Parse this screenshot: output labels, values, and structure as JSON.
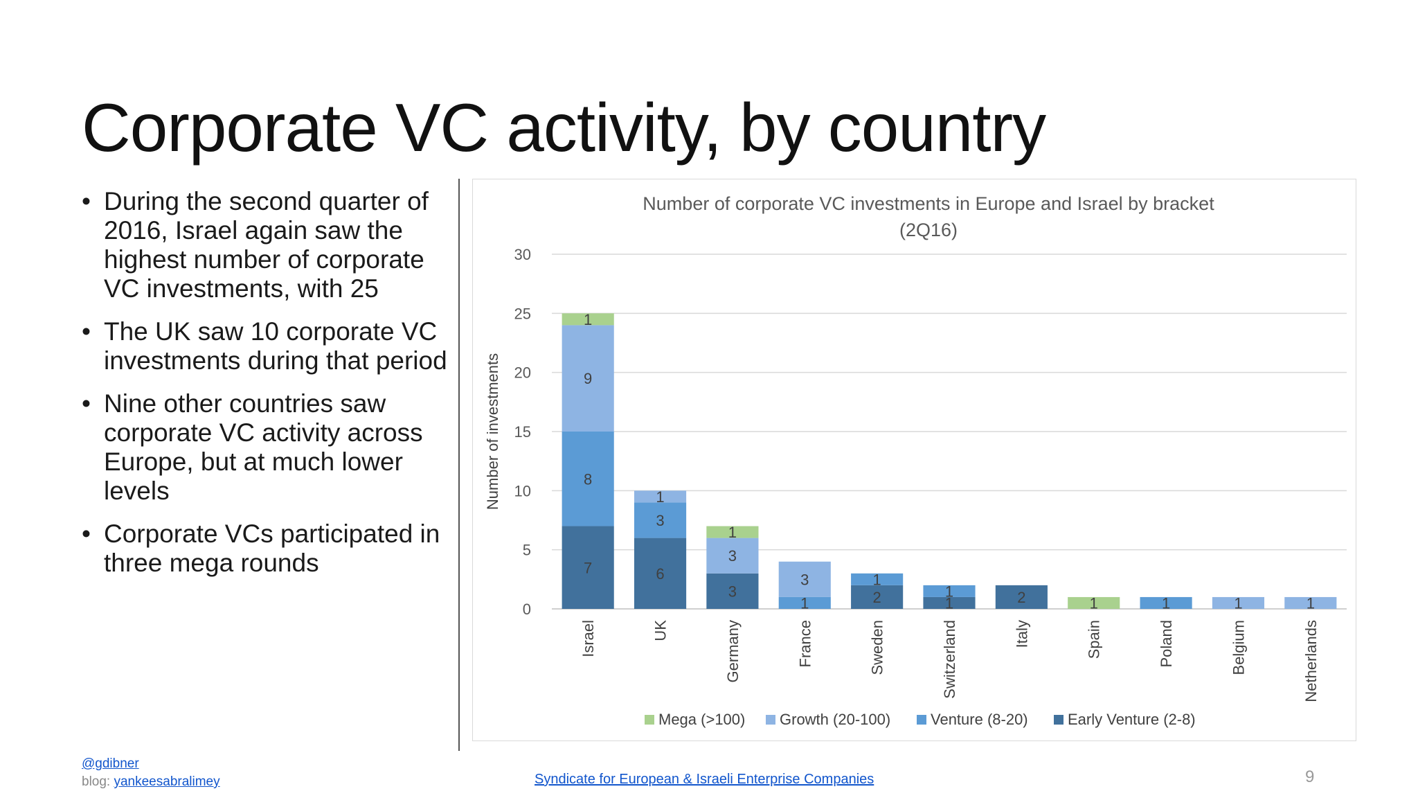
{
  "slide": {
    "title": "Corporate VC activity, by country",
    "bullets": [
      "During the second quarter of 2016, Israel again saw the highest number of corporate VC investments, with 25",
      "The UK saw 10 corporate VC investments during that period",
      "Nine other countries saw corporate VC activity across Europe, but at much lower levels",
      "Corporate VCs participated in three mega rounds"
    ],
    "bullet_glyph": "•",
    "footer": {
      "twitter": "@gdibner",
      "blog_label": "blog: ",
      "blog_link": "yankeesabralimey",
      "source_link": "Syndicate for European & Israeli Enterprise Companies",
      "page_number": "9"
    }
  },
  "chart_data": {
    "type": "bar",
    "stacked": true,
    "title": "Number of corporate VC investments in Europe and Israel by bracket",
    "subtitle": "(2Q16)",
    "xlabel": "",
    "ylabel": "Number of investments",
    "ylim": [
      0,
      30
    ],
    "yticks": [
      0,
      5,
      10,
      15,
      20,
      25,
      30
    ],
    "grid": true,
    "legend_position": "bottom",
    "categories": [
      "Israel",
      "UK",
      "Germany",
      "France",
      "Sweden",
      "Switzerland",
      "Italy",
      "Spain",
      "Poland",
      "Belgium",
      "Netherlands"
    ],
    "series": [
      {
        "name": "Early Venture (2-8)",
        "color": "#41719c",
        "values": [
          7,
          6,
          3,
          0,
          2,
          1,
          2,
          0,
          0,
          0,
          0
        ]
      },
      {
        "name": "Venture (8-20)",
        "color": "#5b9bd5",
        "values": [
          8,
          3,
          0,
          1,
          1,
          1,
          0,
          0,
          1,
          0,
          0
        ]
      },
      {
        "name": "Growth (20-100)",
        "color": "#8eb4e3",
        "values": [
          9,
          1,
          3,
          3,
          0,
          0,
          0,
          0,
          0,
          1,
          1
        ]
      },
      {
        "name": "Mega (>100)",
        "color": "#a9d18e",
        "values": [
          1,
          0,
          1,
          0,
          0,
          0,
          0,
          1,
          0,
          0,
          0
        ]
      }
    ],
    "legend_order": [
      "Mega (>100)",
      "Growth (20-100)",
      "Venture (8-20)",
      "Early Venture (2-8)"
    ]
  }
}
